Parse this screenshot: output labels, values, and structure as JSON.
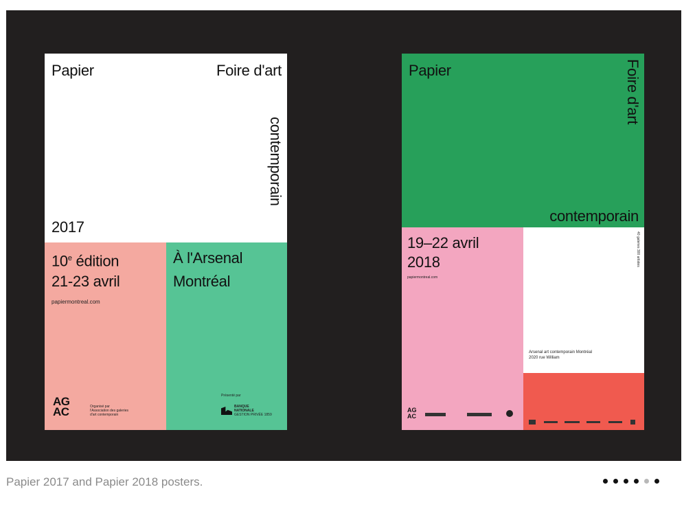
{
  "caption": "Papier 2017 and Papier 2018 posters.",
  "pagination": {
    "total": 6,
    "active_index": 4
  },
  "colors": {
    "slide_bg": "#221f1f",
    "salmon": "#f4a9a0",
    "mint": "#56c495",
    "green": "#27a05a",
    "pink": "#f3a6c0",
    "coral": "#f05a4f"
  },
  "poster_2017": {
    "papier": "Papier",
    "foire": "Foire d'art",
    "contemporain": "contemporain",
    "year": "2017",
    "edition_number": "10",
    "edition_sup": "e",
    "edition_word": " édition",
    "dates": "21-23 avril",
    "url": "papiermontreal.com",
    "venue_line1": "À l'Arsenal",
    "venue_line2": "Montréal",
    "organizer_line1": "Organisé par",
    "organizer_line2": "l'Association des galeries",
    "organizer_line3": "d'art contemporain",
    "presented_by": "Présenté par",
    "bank_line1": "BANQUE",
    "bank_line2": "NATIONALE",
    "bank_line3": "GESTION PRIVÉE 1859",
    "agac_top": "AG",
    "agac_bottom": "AC"
  },
  "poster_2018": {
    "papier": "Papier",
    "foire": "Foire d'art",
    "contemporain": "contemporain",
    "dates_line1": "19–22 avril",
    "dates_line2": "2018",
    "url": "papiermontreal.com",
    "galeries_line1": "40 galeries",
    "galeries_line2": "300 artistes",
    "venue_line1": "Arsenal art contemporain Montréal",
    "venue_line2": "2020 rue William",
    "agac_top": "AG",
    "agac_bottom": "AC"
  }
}
